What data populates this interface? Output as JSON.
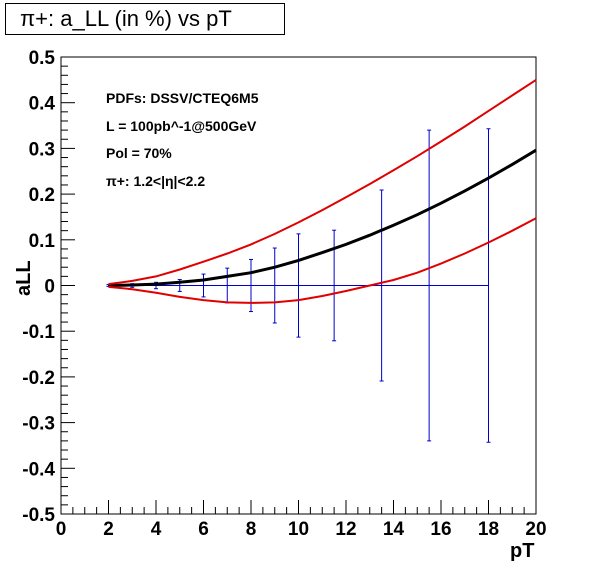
{
  "chart_data": {
    "type": "line",
    "title": "π+: a_LL (in %) vs pT",
    "xlabel": "pT",
    "ylabel": "aLL",
    "xlim": [
      0,
      20
    ],
    "ylim": [
      -0.5,
      0.5
    ],
    "x_ticks": [
      "0",
      "2",
      "4",
      "6",
      "8",
      "10",
      "12",
      "14",
      "16",
      "18",
      "20"
    ],
    "y_ticks": [
      "-0.5",
      "-0.4",
      "-0.3",
      "-0.2",
      "-0.1",
      "0",
      "0.1",
      "0.2",
      "0.3",
      "0.4",
      "0.5"
    ],
    "annotations": [
      "PDFs: DSSV/CTEQ6M5",
      "L = 100pb^-1@500GeV",
      "Pol = 70%",
      "π+: 1.2<|η|<2.2"
    ],
    "series": [
      {
        "role": "central",
        "color": "#000000",
        "points": [
          [
            2,
            0.0
          ],
          [
            3,
            0.001
          ],
          [
            4,
            0.003
          ],
          [
            5,
            0.007
          ],
          [
            6,
            0.012
          ],
          [
            7,
            0.02
          ],
          [
            8,
            0.028
          ],
          [
            9,
            0.04
          ],
          [
            10,
            0.055
          ],
          [
            11,
            0.072
          ],
          [
            12,
            0.09
          ],
          [
            13,
            0.11
          ],
          [
            14,
            0.132
          ],
          [
            15,
            0.155
          ],
          [
            16,
            0.18
          ],
          [
            17,
            0.207
          ],
          [
            18,
            0.235
          ],
          [
            19,
            0.265
          ],
          [
            20,
            0.296
          ]
        ]
      },
      {
        "role": "upper-band",
        "color": "#e00000",
        "points": [
          [
            2,
            0.003
          ],
          [
            3,
            0.01
          ],
          [
            4,
            0.02
          ],
          [
            5,
            0.035
          ],
          [
            6,
            0.052
          ],
          [
            7,
            0.07
          ],
          [
            8,
            0.09
          ],
          [
            9,
            0.113
          ],
          [
            10,
            0.138
          ],
          [
            11,
            0.165
          ],
          [
            12,
            0.193
          ],
          [
            13,
            0.222
          ],
          [
            14,
            0.252
          ],
          [
            15,
            0.283
          ],
          [
            16,
            0.315
          ],
          [
            17,
            0.348
          ],
          [
            18,
            0.382
          ],
          [
            19,
            0.416
          ],
          [
            20,
            0.45
          ]
        ]
      },
      {
        "role": "lower-band",
        "color": "#e00000",
        "points": [
          [
            2,
            -0.003
          ],
          [
            3,
            -0.008
          ],
          [
            4,
            -0.016
          ],
          [
            5,
            -0.025
          ],
          [
            6,
            -0.032
          ],
          [
            7,
            -0.037
          ],
          [
            8,
            -0.038
          ],
          [
            9,
            -0.037
          ],
          [
            10,
            -0.032
          ],
          [
            11,
            -0.023
          ],
          [
            12,
            -0.012
          ],
          [
            13,
            0.0
          ],
          [
            14,
            0.012
          ],
          [
            15,
            0.028
          ],
          [
            16,
            0.048
          ],
          [
            17,
            0.07
          ],
          [
            18,
            0.094
          ],
          [
            19,
            0.12
          ],
          [
            20,
            0.147
          ]
        ]
      }
    ],
    "error_bars": {
      "color": "#0000cc",
      "x_range": [
        2,
        18
      ],
      "points": [
        {
          "x": 2,
          "y": 0,
          "err": 0.002
        },
        {
          "x": 3,
          "y": 0,
          "err": 0.004
        },
        {
          "x": 4,
          "y": 0,
          "err": 0.007
        },
        {
          "x": 5,
          "y": 0,
          "err": 0.013
        },
        {
          "x": 6,
          "y": 0,
          "err": 0.025
        },
        {
          "x": 7,
          "y": 0,
          "err": 0.038
        },
        {
          "x": 8,
          "y": 0,
          "err": 0.057
        },
        {
          "x": 9,
          "y": 0,
          "err": 0.082
        },
        {
          "x": 10,
          "y": 0,
          "err": 0.113
        },
        {
          "x": 11.5,
          "y": 0,
          "err": 0.121
        },
        {
          "x": 13.5,
          "y": 0,
          "err": 0.209
        },
        {
          "x": 15.5,
          "y": 0,
          "err": 0.34
        },
        {
          "x": 18,
          "y": 0,
          "err": 0.343
        }
      ]
    }
  }
}
